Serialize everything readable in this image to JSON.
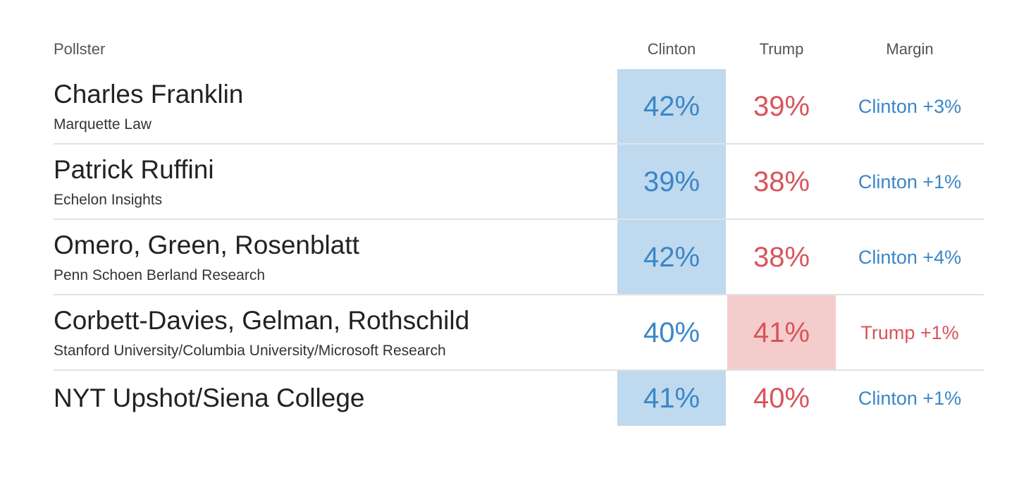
{
  "table": {
    "header": [
      "Pollster",
      "Clinton",
      "Trump",
      "Margin"
    ],
    "rows": [
      {
        "pollster": "Charles Franklin",
        "organization": "Marquette Law",
        "clinton": "42%",
        "trump": "39%",
        "margin": "Clinton +3%"
      },
      {
        "pollster": "Patrick Ruffini",
        "organization": "Echelon Insights",
        "clinton": "39%",
        "trump": "38%",
        "margin": "Clinton +1%"
      },
      {
        "pollster": "Omero, Green, Rosenblatt",
        "organization": "Penn Schoen Berland Research",
        "clinton": "42%",
        "trump": "38%",
        "margin": "Clinton +4%"
      },
      {
        "pollster": "Corbett-Davies, Gelman, Rothschild",
        "organization": "Stanford University/Columbia University/Microsoft Research",
        "clinton": "40%",
        "trump": "41%",
        "margin": "Trump +1%"
      },
      {
        "pollster": "NYT Upshot/Siena College",
        "clinton": "41%",
        "trump": "40%",
        "margin": "Clinton +1%"
      }
    ]
  }
}
